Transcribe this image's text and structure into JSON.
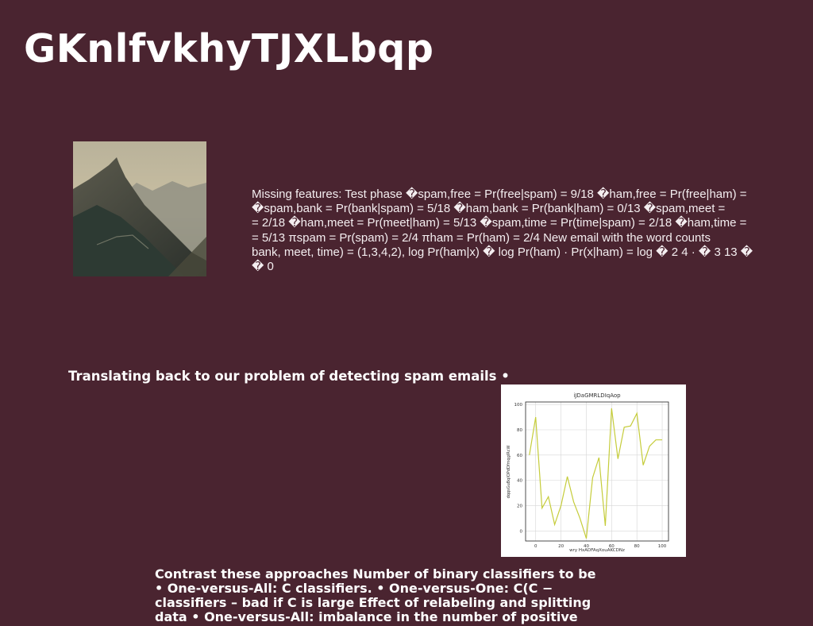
{
  "slide": {
    "title": "GKnlfvkhyTJXLbqp",
    "body_text": "Missing features: Test phase �spam,free = Pr(free|spam) = 9/18 �ham,free = Pr(free|ham) =\n�spam,bank = Pr(bank|spam) = 5/18 �ham,bank = Pr(bank|ham) = 0/13 �spam,meet =\n= 2/18 �ham,meet = Pr(meet|ham) = 5/13 �spam,time = Pr(time|spam) = 2/18 �ham,time =\n= 5/13 πspam = Pr(spam) = 2/4 πham = Pr(ham) = 2/4 New email with the word counts\nbank, meet, time) = (1,3,4,2), log Pr(ham|x) � log Pr(ham) · Pr(x|ham) = log � 2 4 · � 3 13 � � 0",
    "subheading": "Translating back to our problem of detecting spam emails •",
    "contrast_text": "Contrast these approaches Number of binary classifiers to be\n• One-versus-All: C classifiers. • One-versus-One: C(C −\nclassifiers – bad if C is large Effect of relabeling and splitting\ndata • One-versus-All: imbalance in the number of positive"
  },
  "image": {
    "subject": "mountain-peak-photo"
  },
  "colors": {
    "background": "#4a2430",
    "line": "#c5cc3a",
    "grid": "#d6d6d6"
  },
  "chart_data": {
    "type": "line",
    "title": "iJDaGMRLDIqAop",
    "xlabel": "wry HxADFAqXouAKCDNz",
    "ylabel": "dqqsGuBqIOPdDfmqgIRcW",
    "xlim": [
      -8,
      105
    ],
    "ylim": [
      -8,
      102
    ],
    "grid": true,
    "x_ticks": [
      0,
      20,
      40,
      60,
      80,
      100
    ],
    "y_ticks": [
      0,
      20,
      40,
      60,
      80,
      100
    ],
    "x": [
      -5,
      0,
      5,
      10,
      15,
      20,
      25,
      30,
      35,
      40,
      45,
      50,
      55,
      60,
      65,
      70,
      75,
      80,
      85,
      90,
      95,
      100
    ],
    "y": [
      60,
      90,
      18,
      27,
      5,
      20,
      43,
      23,
      10,
      -6,
      42,
      58,
      4,
      97,
      57,
      82,
      83,
      93,
      52,
      67,
      72,
      72
    ]
  }
}
